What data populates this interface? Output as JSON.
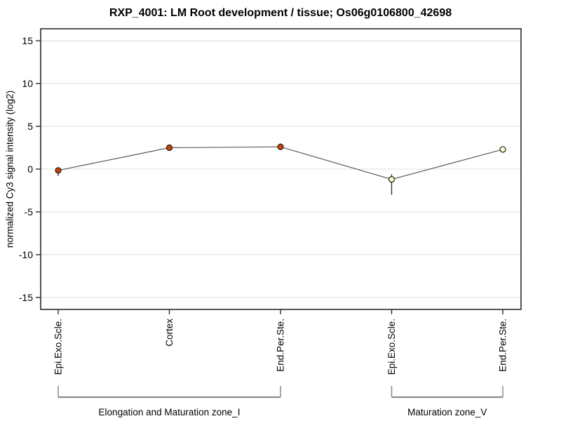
{
  "chart_data": {
    "type": "line",
    "title": "RXP_4001: LM Root development / tissue; Os06g0106800_42698",
    "ylabel": "normalized Cy3 signal intensity (log2)",
    "xlabel": "",
    "ylim": [
      -16.4,
      16.4
    ],
    "yticks": [
      15,
      10,
      5,
      0,
      -5,
      -10,
      -15
    ],
    "grid": true,
    "legend": "none",
    "categories": [
      "Epi.Exo.Scle.",
      "Cortex",
      "End.Per.Ste.",
      "Epi.Exo.Scle.",
      "End.Per.Ste."
    ],
    "series": [
      {
        "name": "normalized Cy3 signal intensity",
        "values": [
          -0.15,
          2.5,
          2.6,
          -1.2,
          2.3
        ],
        "error_low": [
          -0.8,
          2.3,
          2.4,
          -3.0,
          2.2
        ],
        "error_high": [
          0.2,
          2.7,
          3.0,
          -0.6,
          2.5
        ],
        "point_colors": [
          "#cc4400",
          "#cc4400",
          "#cc4400",
          "#ffffcc",
          "#ffffcc"
        ]
      }
    ],
    "groups": [
      {
        "label": "Elongation and Maturation zone_I",
        "from": 0,
        "to": 2
      },
      {
        "label": "Maturation zone_V",
        "from": 3,
        "to": 4
      }
    ],
    "colors": {
      "line": "#5a5a5a",
      "grid": "#e6e6e6",
      "axis_box": "#2b2b2b",
      "tick": "#2b2b2b",
      "error_bar": "#2b2b2b",
      "point_stroke": "#1a1a1a",
      "bracket": "#8a8a8a",
      "text": "#000000"
    }
  }
}
